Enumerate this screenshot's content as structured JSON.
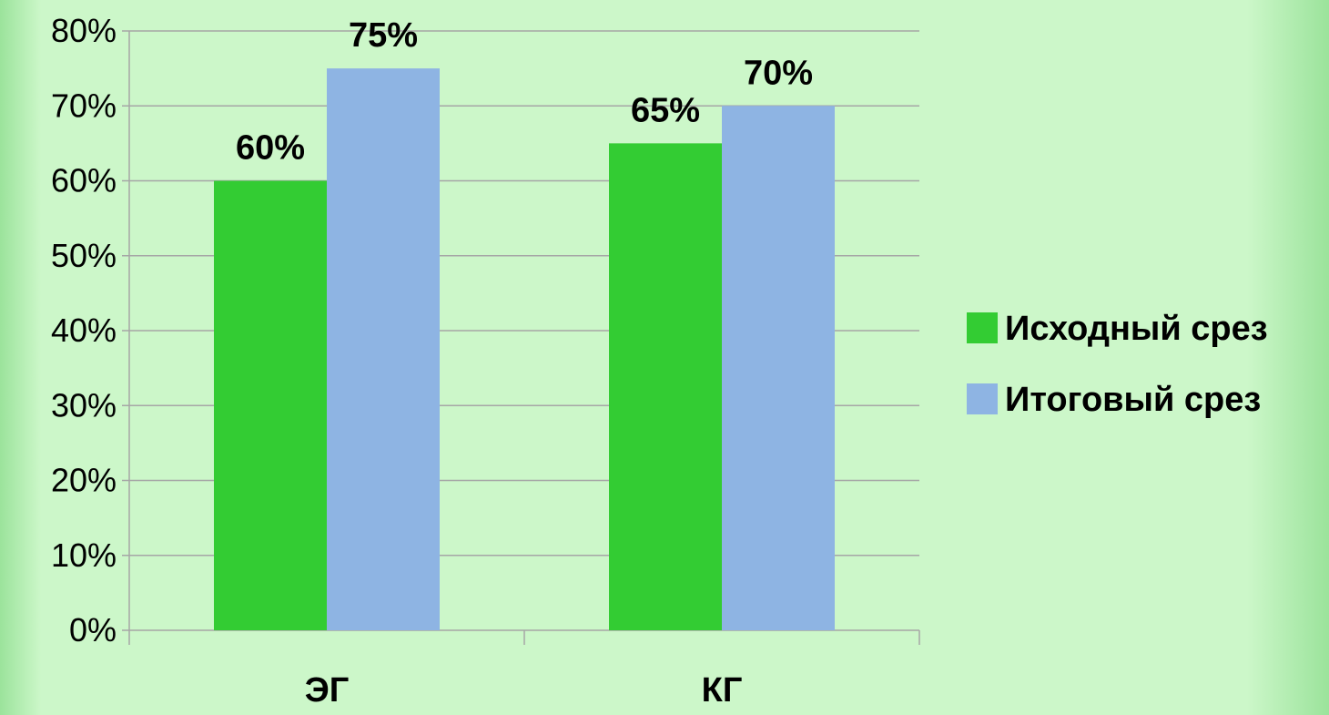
{
  "chart_data": {
    "type": "bar",
    "title": "",
    "xlabel": "",
    "ylabel": "",
    "categories": [
      "ЭГ",
      "КГ"
    ],
    "series": [
      {
        "name": "Исходный срез",
        "values": [
          60,
          65
        ],
        "labels": [
          "60%",
          "65%"
        ]
      },
      {
        "name": "Итоговый срез",
        "values": [
          75,
          70
        ],
        "labels": [
          "75%",
          "70%"
        ]
      }
    ],
    "ylim": [
      0,
      80
    ],
    "yticks": [
      "0%",
      "10%",
      "20%",
      "30%",
      "40%",
      "50%",
      "60%",
      "70%",
      "80%"
    ],
    "grid": true,
    "legend_position": "right"
  },
  "colors": {
    "series_0": "#33cc33",
    "series_1": "#8eb4e3",
    "grid": "#a6a6a6",
    "background": "#ccf7c9"
  }
}
